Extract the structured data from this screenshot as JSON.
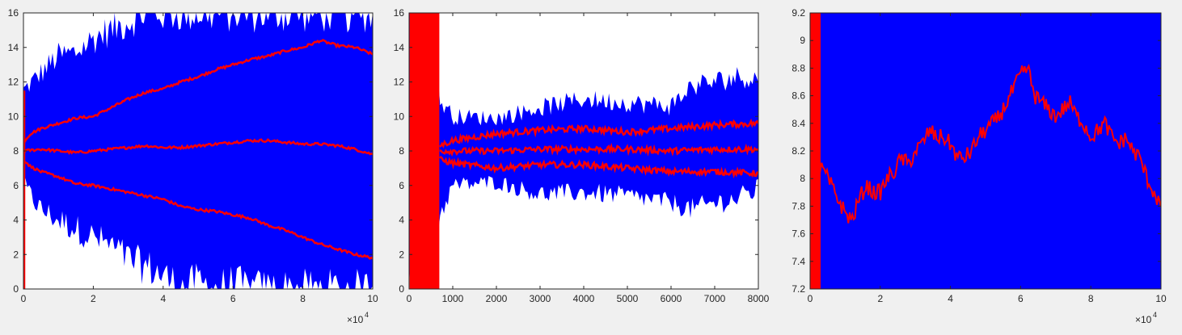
{
  "colors": {
    "envelope": "#0000ff",
    "trend": "#ff0000",
    "axes": "#262626",
    "panel_bg": "#f0f0f0",
    "plot_bg": "#ffffff"
  },
  "chart_data": [
    {
      "type": "line",
      "xlim": [
        0,
        100000
      ],
      "ylim": [
        0,
        16
      ],
      "x_ticks": [
        0,
        2,
        4,
        6,
        8,
        10
      ],
      "y_ticks": [
        0,
        2,
        4,
        6,
        8,
        10,
        12,
        14,
        16
      ],
      "x_exponent": "×10",
      "x_exponent_power": "4",
      "grid": false,
      "series": [
        {
          "role": "upper-mean",
          "x": [
            0,
            2000,
            5000,
            10000,
            15000,
            20000,
            25000,
            30000,
            35000,
            40000,
            45000,
            50000,
            55000,
            60000,
            65000,
            70000,
            75000,
            80000,
            85000,
            90000,
            95000,
            100000
          ],
          "y": [
            8.5,
            9.0,
            9.3,
            9.6,
            9.9,
            10.0,
            10.5,
            11.0,
            11.4,
            11.6,
            12.0,
            12.3,
            12.7,
            13.0,
            13.3,
            13.5,
            13.8,
            14.0,
            14.4,
            14.1,
            14.0,
            13.6
          ]
        },
        {
          "role": "middle-mean",
          "x": [
            0,
            5000,
            10000,
            15000,
            20000,
            25000,
            30000,
            35000,
            40000,
            45000,
            50000,
            55000,
            60000,
            65000,
            70000,
            75000,
            80000,
            85000,
            90000,
            95000,
            100000
          ],
          "y": [
            8.0,
            8.1,
            8.0,
            7.9,
            8.0,
            8.1,
            8.2,
            8.3,
            8.2,
            8.2,
            8.3,
            8.4,
            8.5,
            8.6,
            8.6,
            8.5,
            8.4,
            8.4,
            8.3,
            8.1,
            7.8
          ]
        },
        {
          "role": "lower-mean",
          "x": [
            0,
            2000,
            5000,
            10000,
            15000,
            20000,
            25000,
            30000,
            35000,
            40000,
            45000,
            50000,
            55000,
            60000,
            65000,
            70000,
            75000,
            80000,
            85000,
            90000,
            95000,
            100000
          ],
          "y": [
            7.5,
            7.1,
            6.8,
            6.5,
            6.1,
            6.0,
            5.8,
            5.6,
            5.4,
            5.2,
            4.8,
            4.6,
            4.5,
            4.3,
            4.1,
            3.7,
            3.4,
            3.0,
            2.6,
            2.3,
            2.0,
            1.8
          ]
        },
        {
          "role": "envelope-top",
          "x": [
            0,
            5000,
            10000,
            15000,
            20000,
            25000,
            30000,
            35000,
            40000,
            45000,
            50000,
            55000,
            60000,
            65000,
            70000,
            75000,
            80000,
            85000,
            90000,
            95000,
            100000
          ],
          "y": [
            11.5,
            12.5,
            13.5,
            13.7,
            14.5,
            15.0,
            15.5,
            16.0,
            16.0,
            16.0,
            16.0,
            16.0,
            16.0,
            16.0,
            16.0,
            16.0,
            16.0,
            16.0,
            16.0,
            16.0,
            16.0
          ]
        },
        {
          "role": "envelope-bottom",
          "x": [
            0,
            5000,
            10000,
            15000,
            20000,
            25000,
            30000,
            35000,
            40000,
            45000,
            50000,
            55000,
            60000,
            65000,
            70000,
            75000,
            80000,
            85000,
            90000,
            95000,
            100000
          ],
          "y": [
            6.0,
            4.6,
            4.0,
            3.5,
            3.0,
            2.5,
            1.7,
            1.3,
            0.8,
            0.0,
            0.4,
            0.0,
            0.3,
            0.0,
            0.0,
            0.0,
            0.0,
            0.0,
            0.0,
            0.0,
            0.0
          ]
        }
      ]
    },
    {
      "type": "line",
      "xlim": [
        0,
        8000
      ],
      "ylim": [
        0,
        16
      ],
      "x_ticks": [
        0,
        1000,
        2000,
        3000,
        4000,
        5000,
        6000,
        7000,
        8000
      ],
      "y_ticks": [
        0,
        2,
        4,
        6,
        8,
        10,
        12,
        14,
        16
      ],
      "grid": false,
      "series": [
        {
          "role": "upper-mean",
          "x": [
            700,
            1000,
            2000,
            3000,
            4000,
            5000,
            6000,
            7000,
            8000
          ],
          "y": [
            8.3,
            8.6,
            9.0,
            9.2,
            9.3,
            9.1,
            9.3,
            9.5,
            9.6
          ]
        },
        {
          "role": "middle-mean",
          "x": [
            700,
            1000,
            2000,
            3000,
            4000,
            5000,
            6000,
            7000,
            8000
          ],
          "y": [
            8.0,
            8.0,
            8.0,
            8.1,
            8.1,
            8.1,
            8.0,
            8.1,
            8.1
          ]
        },
        {
          "role": "lower-mean",
          "x": [
            700,
            1000,
            2000,
            3000,
            4000,
            5000,
            6000,
            7000,
            8000
          ],
          "y": [
            7.5,
            7.3,
            7.0,
            7.2,
            7.2,
            7.0,
            6.8,
            6.8,
            6.7
          ]
        },
        {
          "role": "envelope-top",
          "x": [
            0,
            300,
            500,
            700,
            1000,
            2000,
            3000,
            4000,
            5000,
            6000,
            6500,
            7000,
            7500,
            8000
          ],
          "y": [
            16,
            16,
            14,
            11,
            10,
            9.9,
            10.5,
            11.0,
            10.8,
            10.6,
            11.8,
            12.0,
            12.3,
            12.2
          ]
        },
        {
          "role": "envelope-bottom",
          "x": [
            0,
            300,
            500,
            700,
            1000,
            2000,
            3000,
            4000,
            5000,
            6000,
            6500,
            7000,
            7500,
            8000
          ],
          "y": [
            0,
            0,
            1.5,
            4.2,
            6.0,
            6.2,
            5.5,
            5.6,
            5.4,
            5.0,
            4.6,
            5.0,
            5.2,
            5.8
          ]
        }
      ]
    },
    {
      "type": "line",
      "xlim": [
        0,
        100000
      ],
      "ylim": [
        7.2,
        9.2
      ],
      "x_ticks": [
        0,
        2,
        4,
        6,
        8,
        10
      ],
      "y_ticks": [
        7.2,
        7.4,
        7.6,
        7.8,
        8,
        8.2,
        8.4,
        8.6,
        8.8,
        9,
        9.2
      ],
      "y_tick_labels": [
        "7.2",
        "7.4",
        "7.6",
        "7.8",
        "8",
        "8.2",
        "8.4",
        "8.6",
        "8.8",
        "9",
        "9.2"
      ],
      "x_exponent": "×10",
      "x_exponent_power": "4",
      "grid": false,
      "series": [
        {
          "role": "middle-mean",
          "x": [
            1000,
            2000,
            4000,
            6000,
            8000,
            10000,
            12000,
            14000,
            16000,
            18000,
            20000,
            22000,
            24000,
            26000,
            28000,
            30000,
            32000,
            34000,
            36000,
            38000,
            40000,
            42000,
            44000,
            46000,
            48000,
            50000,
            52000,
            54000,
            56000,
            58000,
            60000,
            62000,
            64000,
            66000,
            68000,
            70000,
            72000,
            74000,
            76000,
            78000,
            80000,
            82000,
            84000,
            86000,
            88000,
            90000,
            92000,
            94000,
            96000,
            98000,
            100000
          ],
          "y": [
            8.5,
            8.1,
            8.05,
            7.95,
            7.85,
            7.75,
            7.7,
            7.85,
            7.95,
            7.9,
            7.9,
            8.0,
            8.05,
            8.15,
            8.1,
            8.2,
            8.25,
            8.35,
            8.3,
            8.3,
            8.25,
            8.15,
            8.15,
            8.2,
            8.3,
            8.35,
            8.4,
            8.45,
            8.55,
            8.65,
            8.75,
            8.8,
            8.6,
            8.55,
            8.5,
            8.45,
            8.5,
            8.55,
            8.45,
            8.4,
            8.3,
            8.35,
            8.4,
            8.3,
            8.25,
            8.3,
            8.2,
            8.15,
            8.0,
            7.9,
            7.8
          ]
        }
      ]
    }
  ]
}
